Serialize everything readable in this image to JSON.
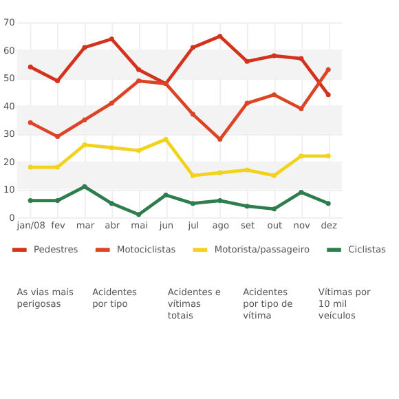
{
  "chart_data": {
    "type": "line",
    "categories": [
      "jan/08",
      "fev",
      "mar",
      "abr",
      "mai",
      "jun",
      "jul",
      "ago",
      "set",
      "out",
      "nov",
      "dez"
    ],
    "series": [
      {
        "name": "Pedestres",
        "color": "#d4321c",
        "values": [
          54,
          49,
          61,
          64,
          53,
          48,
          61,
          65,
          56,
          58,
          57,
          44
        ]
      },
      {
        "name": "Motociclistas",
        "color": "#dc4426",
        "values": [
          34,
          29,
          35,
          41,
          49,
          48,
          37,
          28,
          41,
          44,
          39,
          53
        ]
      },
      {
        "name": "Motorista/passageiro",
        "color": "#f2d21a",
        "values": [
          18,
          18,
          26,
          25,
          24,
          28,
          15,
          16,
          17,
          15,
          22,
          22
        ]
      },
      {
        "name": "Ciclistas",
        "color": "#2e7d4f",
        "values": [
          6,
          6,
          11,
          5,
          1,
          8,
          5,
          6,
          4,
          3,
          9,
          5
        ]
      }
    ],
    "ylim": [
      0,
      70
    ],
    "yticks": [
      0,
      10,
      20,
      30,
      40,
      50,
      60,
      70
    ],
    "grid": true,
    "marker": "circle",
    "line_style": "solid",
    "legend": "bottom",
    "bands": [
      {
        "axis": "y",
        "from": 10,
        "to": 20,
        "color": "#f3f3f3"
      },
      {
        "axis": "y",
        "from": 30,
        "to": 40,
        "color": "#f3f3f3"
      },
      {
        "axis": "y",
        "from": 50,
        "to": 60,
        "color": "#f3f3f3"
      }
    ],
    "annotations": [
      "As vias mais perigosas",
      "Acidentes por tipo",
      "Acidentes e vítimas totais",
      "Acidentes por tipo de vítima",
      "Vítimas por 10 mil veículos"
    ]
  }
}
